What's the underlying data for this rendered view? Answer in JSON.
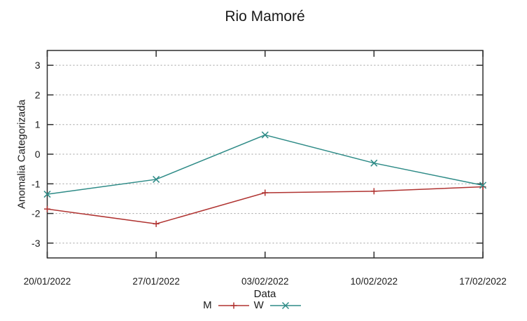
{
  "title": "Rio Mamoré",
  "colors": {
    "background": "#ffffff",
    "text": "#1a1a1a",
    "border": "#2e2e2e",
    "grid": "#9e9e9e",
    "m_series": "#b03331",
    "w_series": "#2e8b87"
  },
  "chart_data": {
    "type": "line",
    "title": "Rio Mamoré",
    "xlabel": "Data",
    "ylabel": "Anomalia Categorizada",
    "categories": [
      "20/01/2022",
      "27/01/2022",
      "03/02/2022",
      "10/02/2022",
      "17/02/2022"
    ],
    "y_ticks": [
      3,
      2,
      1,
      0,
      -1,
      -2,
      -3
    ],
    "ylim": [
      -3.5,
      3.5
    ],
    "grid": "horizontal-dotted",
    "legend_position": "bottom-center-below-xlabel",
    "series": [
      {
        "name": "M",
        "color": "#b03331",
        "marker": "plus",
        "values": [
          -1.85,
          -2.35,
          -1.3,
          -1.25,
          -1.1
        ]
      },
      {
        "name": "W",
        "color": "#2e8b87",
        "marker": "cross",
        "values": [
          -1.35,
          -0.85,
          0.65,
          -0.3,
          -1.05
        ]
      }
    ]
  }
}
